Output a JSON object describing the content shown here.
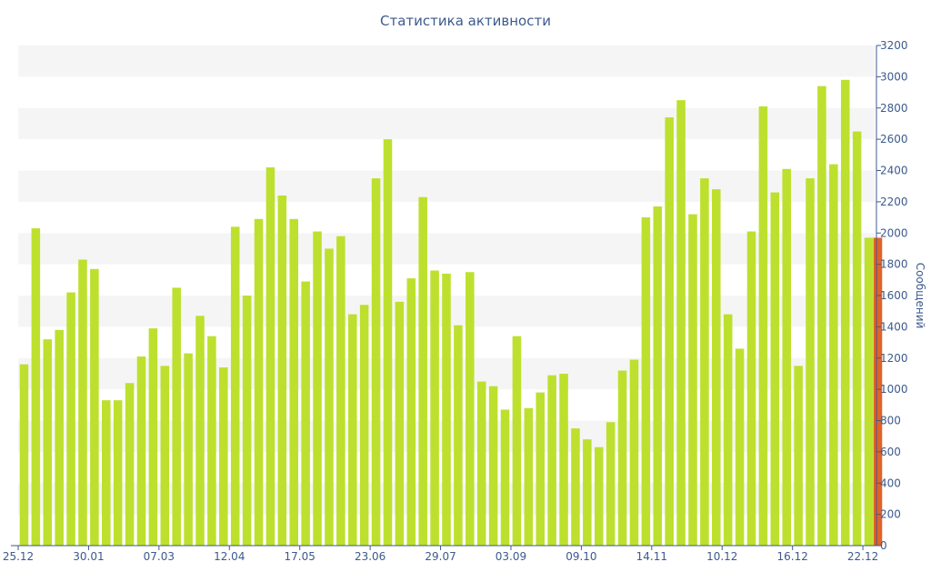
{
  "chart_data": {
    "type": "bar",
    "title": "Статистика активности",
    "xlabel": "",
    "ylabel": "Сообщений",
    "ylim": [
      0,
      3200
    ],
    "ytick_step": 200,
    "y_axis_side": "right",
    "grid": "alternating horizontal bands",
    "x_tick_labels": [
      "25.12",
      "30.01",
      "07.03",
      "12.04",
      "17.05",
      "23.06",
      "29.07",
      "03.09",
      "09.10",
      "14.11",
      "10.12",
      "16.12",
      "22.12"
    ],
    "x_tick_positions": [
      0,
      6,
      12,
      18,
      24,
      30,
      36,
      42,
      48,
      54,
      60,
      66,
      72
    ],
    "series": [
      {
        "color": "#bde02e",
        "values": [
          1160,
          2030,
          1320,
          1380,
          1620,
          1830,
          1770,
          930,
          930,
          1040,
          1210,
          1390,
          1150,
          1650,
          1230,
          1470,
          1340,
          1140,
          2040,
          1600,
          2090,
          2420,
          2240,
          2090,
          1690,
          2010,
          1900,
          1980,
          1480,
          1540,
          2350,
          2600,
          1560,
          1710,
          2230,
          1760,
          1740,
          1410,
          1750,
          1050,
          1020,
          870,
          1340,
          880,
          980,
          1090,
          1100,
          750,
          680,
          630,
          790,
          1120,
          1190,
          2100,
          2170,
          2740,
          2850,
          2120,
          2350,
          2280,
          1480,
          1260,
          2010,
          2810,
          2260,
          2410,
          1150,
          2350,
          2940,
          2440,
          2980,
          2650,
          1970
        ]
      },
      {
        "color": "#e0632a",
        "values": [
          1970
        ]
      }
    ]
  }
}
